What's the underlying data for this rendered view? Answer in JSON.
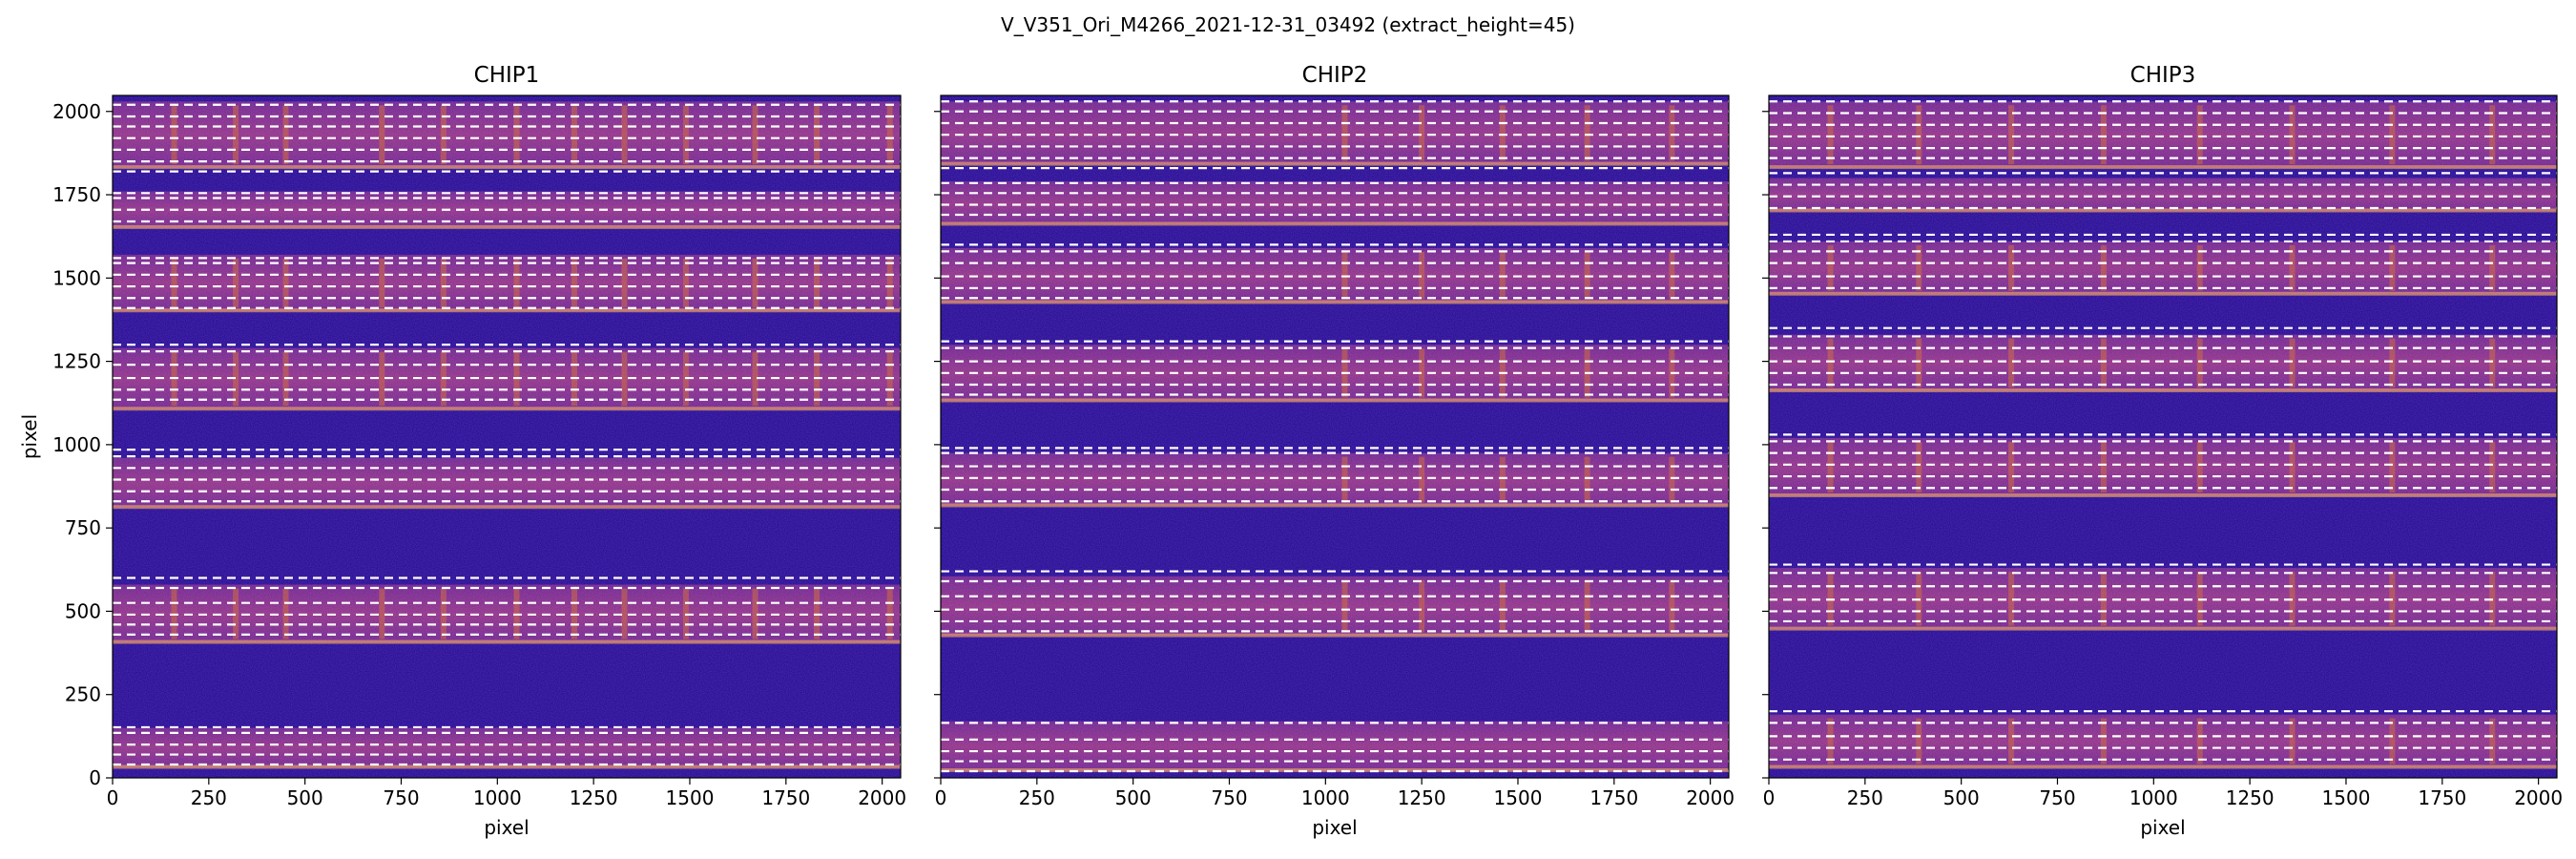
{
  "figure": {
    "suptitle": "V_V351_Ori_M4266_2021-12-31_03492  (extract_height=45)"
  },
  "colors": {
    "background": "#1e0594",
    "bright_stripe": "#6a208e",
    "bright_stripe_core": "#8c2e86",
    "stripe_edge": "#ffb74a",
    "trace_line": "#ffffff",
    "arc_line": "#c8612f"
  },
  "chart_data": [
    {
      "type": "heatmap",
      "title": "CHIP1",
      "xlabel": "pixel",
      "ylabel": "pixel",
      "xlim": [
        0,
        2048
      ],
      "ylim": [
        0,
        2048
      ],
      "xticks": [
        0,
        250,
        500,
        750,
        1000,
        1250,
        1500,
        1750,
        2000
      ],
      "yticks": [
        0,
        250,
        500,
        750,
        1000,
        1250,
        1500,
        1750,
        2000
      ],
      "colormap": "plasma",
      "orders": [
        {
          "bottom": 30,
          "top": 150
        },
        {
          "bottom": 405,
          "top": 580
        },
        {
          "bottom": 810,
          "top": 960
        },
        {
          "bottom": 1105,
          "top": 1290
        },
        {
          "bottom": 1400,
          "top": 1570
        },
        {
          "bottom": 1650,
          "top": 1760
        },
        {
          "bottom": 1830,
          "top": 2030
        }
      ],
      "dashed_lines_y": [
        40,
        70,
        100,
        135,
        152,
        430,
        460,
        490,
        525,
        570,
        600,
        830,
        860,
        895,
        930,
        965,
        985,
        1135,
        1165,
        1200,
        1240,
        1280,
        1300,
        1410,
        1440,
        1475,
        1510,
        1545,
        1560,
        1670,
        1705,
        1740,
        1755,
        1820,
        1850,
        1885,
        1920,
        1955,
        1985,
        2020
      ],
      "arc_lines_x": [
        160,
        320,
        450,
        700,
        860,
        1050,
        1200,
        1330,
        1490,
        1670,
        1830,
        2020
      ]
    },
    {
      "type": "heatmap",
      "title": "CHIP2",
      "xlabel": "pixel",
      "ylabel": "",
      "xlim": [
        0,
        2048
      ],
      "ylim": [
        0,
        2048
      ],
      "xticks": [
        0,
        250,
        500,
        750,
        1000,
        1250,
        1500,
        1750,
        2000
      ],
      "yticks": [
        0,
        250,
        500,
        750,
        1000,
        1250,
        1500,
        1750,
        2000
      ],
      "colormap": "plasma",
      "orders": [
        {
          "bottom": 20,
          "top": 170
        },
        {
          "bottom": 425,
          "top": 605
        },
        {
          "bottom": 815,
          "top": 975
        },
        {
          "bottom": 1130,
          "top": 1300
        },
        {
          "bottom": 1425,
          "top": 1590
        },
        {
          "bottom": 1660,
          "top": 1790
        },
        {
          "bottom": 1840,
          "top": 2030
        }
      ],
      "dashed_lines_y": [
        20,
        50,
        80,
        115,
        165,
        440,
        470,
        505,
        545,
        590,
        620,
        830,
        865,
        900,
        935,
        975,
        990,
        1150,
        1180,
        1215,
        1250,
        1290,
        1310,
        1440,
        1470,
        1505,
        1545,
        1580,
        1600,
        1690,
        1720,
        1755,
        1785,
        1830,
        1860,
        1895,
        1930,
        1965,
        2000,
        2030
      ],
      "arc_lines_x": [
        1050,
        1250,
        1460,
        1680,
        1900
      ]
    },
    {
      "type": "heatmap",
      "title": "CHIP3",
      "xlabel": "pixel",
      "ylabel": "",
      "xlim": [
        0,
        2048
      ],
      "ylim": [
        0,
        2048
      ],
      "xticks": [
        0,
        250,
        500,
        750,
        1000,
        1250,
        1500,
        1750,
        2000
      ],
      "yticks": [
        0,
        250,
        500,
        750,
        1000,
        1250,
        1500,
        1750,
        2000
      ],
      "colormap": "plasma",
      "orders": [
        {
          "bottom": 30,
          "top": 190
        },
        {
          "bottom": 445,
          "top": 630
        },
        {
          "bottom": 845,
          "top": 1020
        },
        {
          "bottom": 1160,
          "top": 1330
        },
        {
          "bottom": 1450,
          "top": 1610
        },
        {
          "bottom": 1700,
          "top": 1800
        },
        {
          "bottom": 1830,
          "top": 2030
        }
      ],
      "dashed_lines_y": [
        55,
        90,
        125,
        165,
        200,
        470,
        500,
        535,
        575,
        615,
        640,
        870,
        905,
        940,
        975,
        1010,
        1030,
        1180,
        1215,
        1250,
        1290,
        1325,
        1350,
        1470,
        1505,
        1545,
        1580,
        1610,
        1630,
        1710,
        1745,
        1780,
        1815,
        1860,
        1890,
        1925,
        1960,
        1995,
        2030
      ],
      "arc_lines_x": [
        160,
        390,
        630,
        870,
        1120,
        1360,
        1620,
        1880
      ]
    }
  ]
}
